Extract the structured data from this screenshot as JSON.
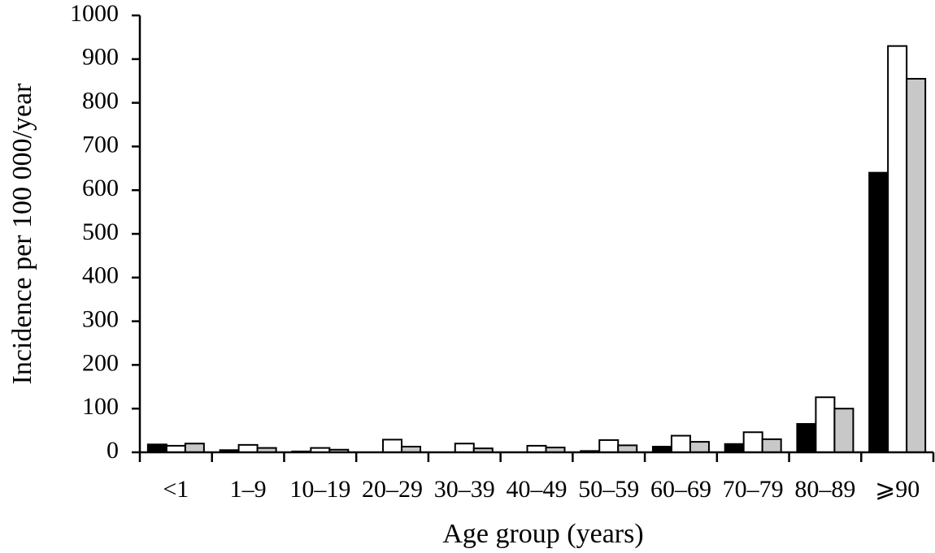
{
  "chart_data": {
    "type": "bar",
    "x_label": "Age group (years)",
    "y_label": "Incidence per 100 000/year",
    "categories": [
      "<1",
      "1–9",
      "10–19",
      "20–29",
      "30–39",
      "40–49",
      "50–59",
      "60–69",
      "70–79",
      "80–89",
      "⩾90"
    ],
    "series": [
      {
        "color": "#000000",
        "values": [
          18,
          5,
          2,
          0,
          0,
          0,
          3,
          13,
          19,
          65,
          640
        ]
      },
      {
        "color": "#ffffff",
        "values": [
          15,
          17,
          10,
          29,
          20,
          15,
          28,
          38,
          46,
          126,
          930
        ]
      },
      {
        "color": "#c8c8c8",
        "values": [
          20,
          10,
          6,
          13,
          9,
          11,
          16,
          24,
          30,
          100,
          855
        ]
      }
    ],
    "ylim": [
      0,
      1000
    ],
    "yticks": [
      0,
      100,
      200,
      300,
      400,
      500,
      600,
      700,
      800,
      900,
      1000
    ]
  }
}
